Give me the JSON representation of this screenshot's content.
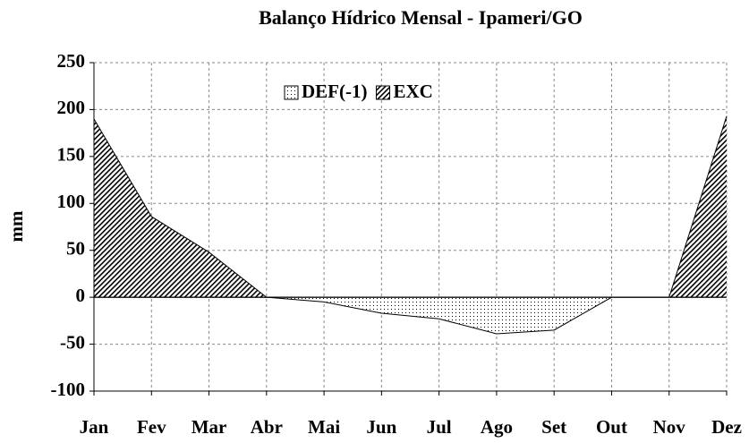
{
  "chart_data": {
    "type": "area",
    "title": "Balanço Hídrico Mensal - Ipameri/GO",
    "y_label": "mm",
    "categories": [
      "Jan",
      "Fev",
      "Mar",
      "Abr",
      "Mai",
      "Jun",
      "Jul",
      "Ago",
      "Set",
      "Out",
      "Nov",
      "Dez"
    ],
    "series": [
      {
        "name": "DEF(-1)",
        "color": "#000000",
        "pattern": "dots",
        "values": [
          0,
          0,
          0,
          0,
          -5,
          -17,
          -23,
          -39,
          -35,
          0,
          0,
          0
        ]
      },
      {
        "name": "EXC",
        "color": "#000000",
        "pattern": "hatch",
        "values": [
          190,
          86,
          48,
          0,
          0,
          0,
          0,
          0,
          0,
          0,
          0,
          193
        ]
      }
    ],
    "ylim": [
      -100,
      250
    ],
    "yticks": [
      -100,
      -50,
      0,
      50,
      100,
      150,
      200,
      250
    ],
    "grid": true,
    "legend": "top"
  }
}
